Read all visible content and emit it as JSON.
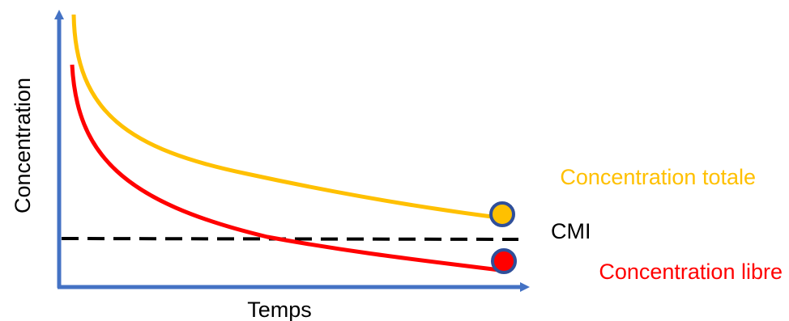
{
  "chart_data": {
    "type": "line",
    "title": "",
    "xlabel": "Temps",
    "ylabel": "Concentration",
    "series": [
      {
        "name": "Concentration totale",
        "color": "#FFC000",
        "endpoint_marker": "yellow-dot"
      },
      {
        "name": "Concentration libre",
        "color": "#FF0000",
        "endpoint_marker": "red-dot"
      }
    ],
    "threshold": {
      "label": "CMI",
      "style": "dashed",
      "color": "#000000"
    },
    "axis_color": "#4472C4",
    "marker_ring_color": "#2F4F9A",
    "grid": false,
    "ticks": false
  }
}
